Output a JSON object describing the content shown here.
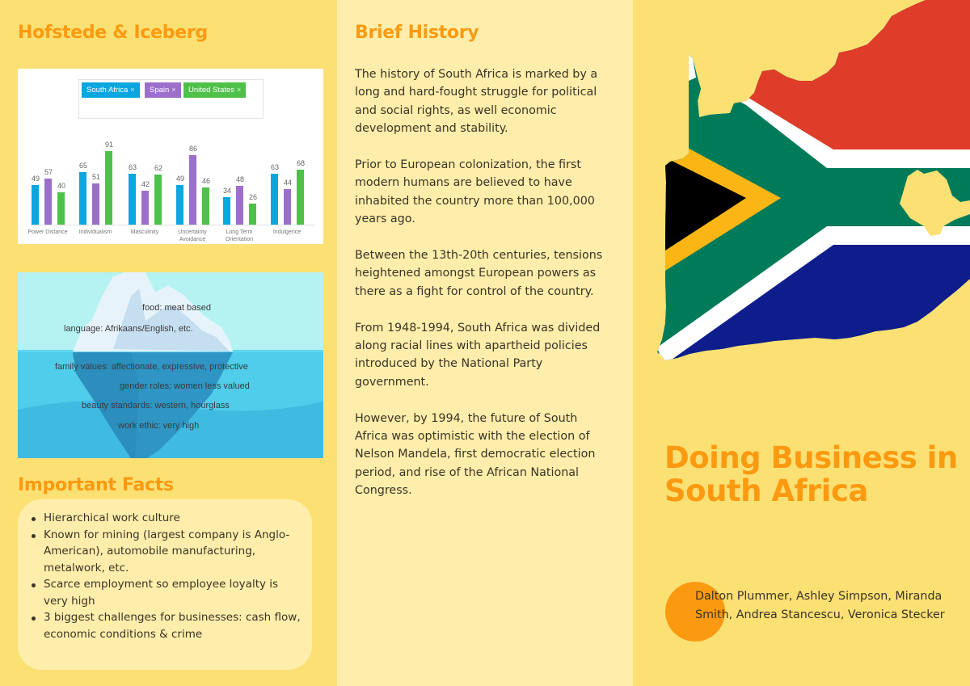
{
  "left_panel": {
    "hofstede_title": "Hofstede & Iceberg",
    "important_facts_title": "Important Facts",
    "important_facts": [
      "Hierarchical work culture",
      "Known for mining (largest company is Anglo-American), automobile manufacturing, metalwork, etc.",
      "Scarce employment so employee loyalty is very high",
      "3 biggest challenges for businesses: cash flow, economic conditions & crime"
    ],
    "iceberg": {
      "above_water": [
        "food: meat based",
        "language: Afrikaans/English, etc."
      ],
      "below_water": [
        "family values: affectionate, expressive, protective",
        "gender roles: women less valued",
        "beauty standards: western, hourglass",
        "work ethic: very high"
      ]
    }
  },
  "chart_data": {
    "type": "bar",
    "title": "",
    "xlabel": "",
    "ylabel": "",
    "ylim": [
      0,
      100
    ],
    "grid": false,
    "legend_position": "top",
    "categories": [
      "Power Distance",
      "Individualism",
      "Masculinity",
      "Uncertainty Avoidance",
      "Long Term Orientation",
      "Indulgence"
    ],
    "series": [
      {
        "name": "South Africa",
        "color": "#0aa6e0",
        "values": [
          49,
          65,
          63,
          49,
          34,
          63
        ]
      },
      {
        "name": "Spain",
        "color": "#9c6fcc",
        "values": [
          57,
          51,
          42,
          86,
          48,
          44
        ]
      },
      {
        "name": "United States",
        "color": "#4fc14a",
        "values": [
          40,
          91,
          62,
          46,
          26,
          68
        ]
      }
    ]
  },
  "chart_legend": {
    "chips": [
      {
        "label": "South Africa",
        "close": "×"
      },
      {
        "label": "Spain",
        "close": "×"
      },
      {
        "label": "United States",
        "close": "×"
      }
    ]
  },
  "middle_panel": {
    "title": "Brief History",
    "paragraphs": [
      "The history of South Africa is marked by a long and hard-fought struggle for political and social rights, as well economic development and stability.",
      "Prior to European colonization, the first modern humans are believed to have inhabited the country more than 100,000 years ago.",
      "Between the 13th-20th centuries, tensions heightened amongst European powers as there as a fight for control of the country.",
      "From 1948-1994, South Africa was divided along racial lines with apartheid policies introduced by the National Party government.",
      "However, by 1994, the future of South Africa was optimistic with the election of Nelson Mandela, first democratic election period, and rise of the African National Congress."
    ]
  },
  "cover": {
    "title": "Doing Business in South Africa",
    "authors": "Dalton Plummer, Ashley Simpson, Miranda Smith, Andrea Stancescu, Veronica Stecker",
    "flag_colors": {
      "red": "#e03c2a",
      "green": "#007b5a",
      "blue": "#0f1d8c",
      "gold": "#fbb515",
      "black": "#000000",
      "white": "#ffffff"
    }
  },
  "theme": {
    "background": "#fbe074",
    "panel_light": "#ffeeab",
    "accent": "#fb9a10",
    "text": "#3a3326"
  }
}
